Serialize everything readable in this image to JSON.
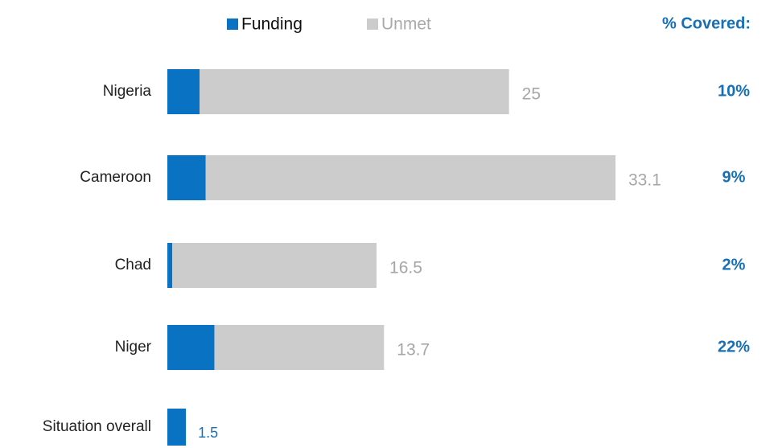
{
  "chart_data": {
    "type": "stacked-barh",
    "categories": [
      "Nigeria",
      "Cameroon",
      "Chad",
      "Niger",
      "Situation overall"
    ],
    "series": [
      {
        "name": "Funding",
        "color": "#0a72c2",
        "values": [
          2.6,
          3.1,
          0.4,
          3.8,
          1.5
        ]
      },
      {
        "name": "Unmet",
        "color": "#cccccc",
        "values": [
          25,
          33.1,
          16.5,
          13.7,
          null
        ]
      }
    ],
    "coverage": {
      "title": "% Covered:",
      "values": [
        10,
        9,
        2,
        22,
        null
      ],
      "value_labels": [
        "10%",
        "9%",
        "2%",
        "22%",
        null
      ]
    }
  }
}
